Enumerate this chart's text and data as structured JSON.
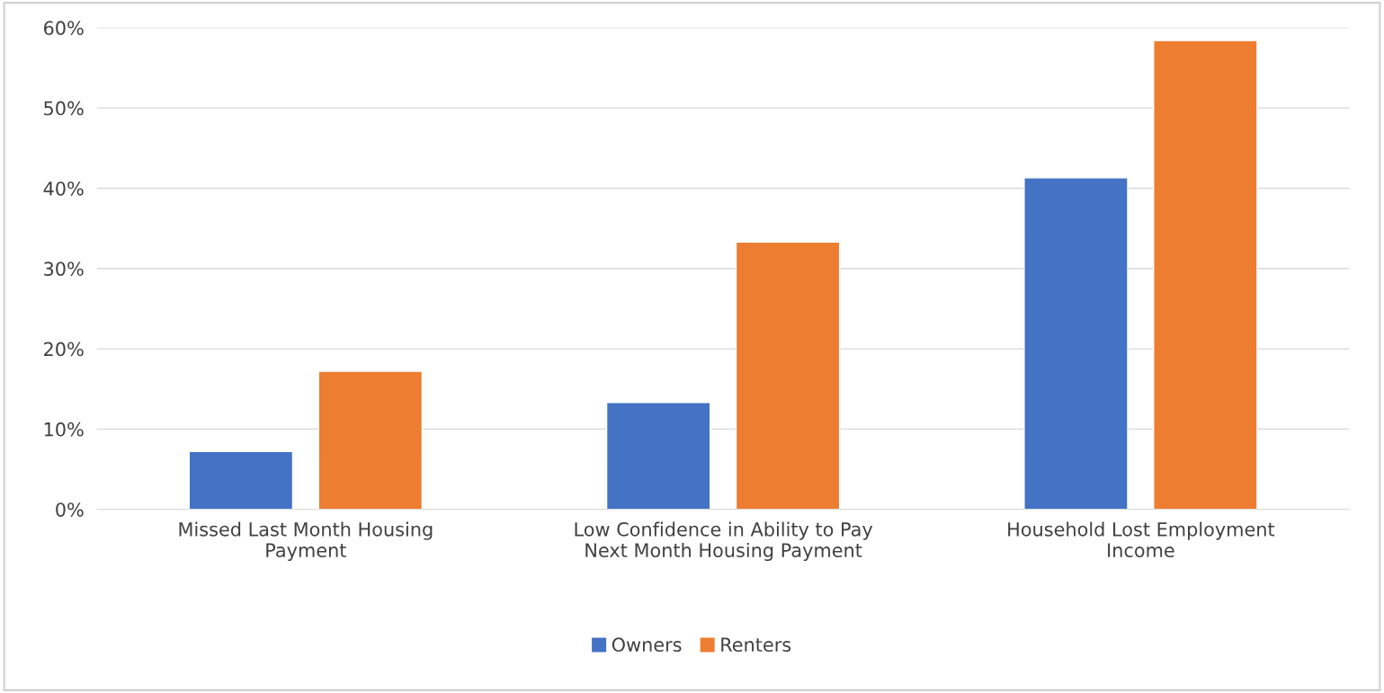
{
  "chart_data": {
    "type": "bar",
    "categories": [
      "Missed Last Month Housing\nPayment",
      "Low Confidence in Ability to Pay\nNext Month Housing Payment",
      "Household Lost Employment\nIncome"
    ],
    "series": [
      {
        "name": "Owners",
        "color": "#4472c4",
        "values": [
          7.2,
          13.3,
          41.3
        ]
      },
      {
        "name": "Renters",
        "color": "#ed7d31",
        "values": [
          17.2,
          33.3,
          58.4
        ]
      }
    ],
    "ylim": [
      0,
      60
    ],
    "yticks": [
      {
        "value": 0,
        "label": "0%"
      },
      {
        "value": 10,
        "label": "10%"
      },
      {
        "value": 20,
        "label": "20%"
      },
      {
        "value": 30,
        "label": "30%"
      },
      {
        "value": 40,
        "label": "40%"
      },
      {
        "value": 50,
        "label": "50%"
      },
      {
        "value": 60,
        "label": "60%"
      }
    ],
    "grid": "y",
    "legend": "bottom"
  }
}
